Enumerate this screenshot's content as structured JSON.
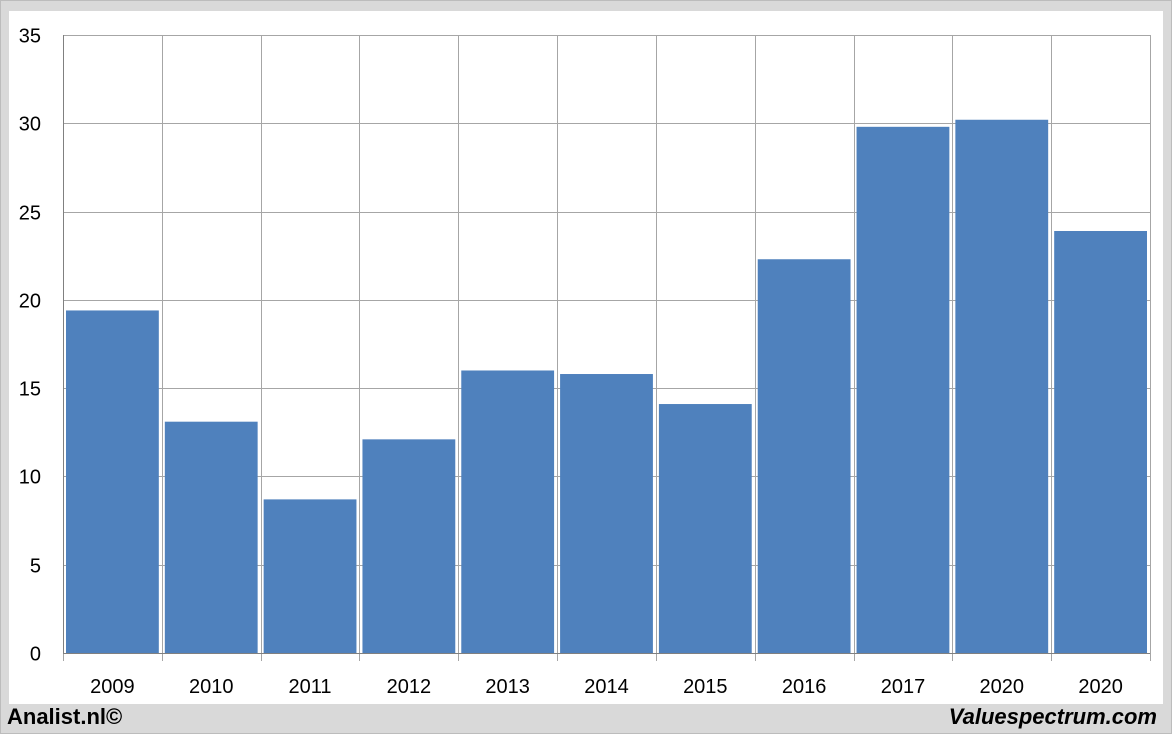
{
  "chart_data": {
    "type": "bar",
    "categories": [
      "2009",
      "2010",
      "2011",
      "2012",
      "2013",
      "2014",
      "2015",
      "2016",
      "2017",
      "2020",
      "2020"
    ],
    "values": [
      19.4,
      13.1,
      8.7,
      12.1,
      16.0,
      15.8,
      14.1,
      22.3,
      29.8,
      30.2,
      23.9
    ],
    "title": "",
    "xlabel": "",
    "ylabel": "",
    "ylim": [
      0,
      35
    ],
    "yticks": [
      0,
      5,
      10,
      15,
      20,
      25,
      30,
      35
    ],
    "grid": true,
    "legend": "none",
    "bar_color": "#4f81bd"
  },
  "footer": {
    "left": "Analist.nl©",
    "right": "Valuespectrum.com"
  },
  "colors": {
    "background": "#d9d9d9",
    "plot_area": "#ffffff",
    "grid": "#a6a6a6"
  }
}
